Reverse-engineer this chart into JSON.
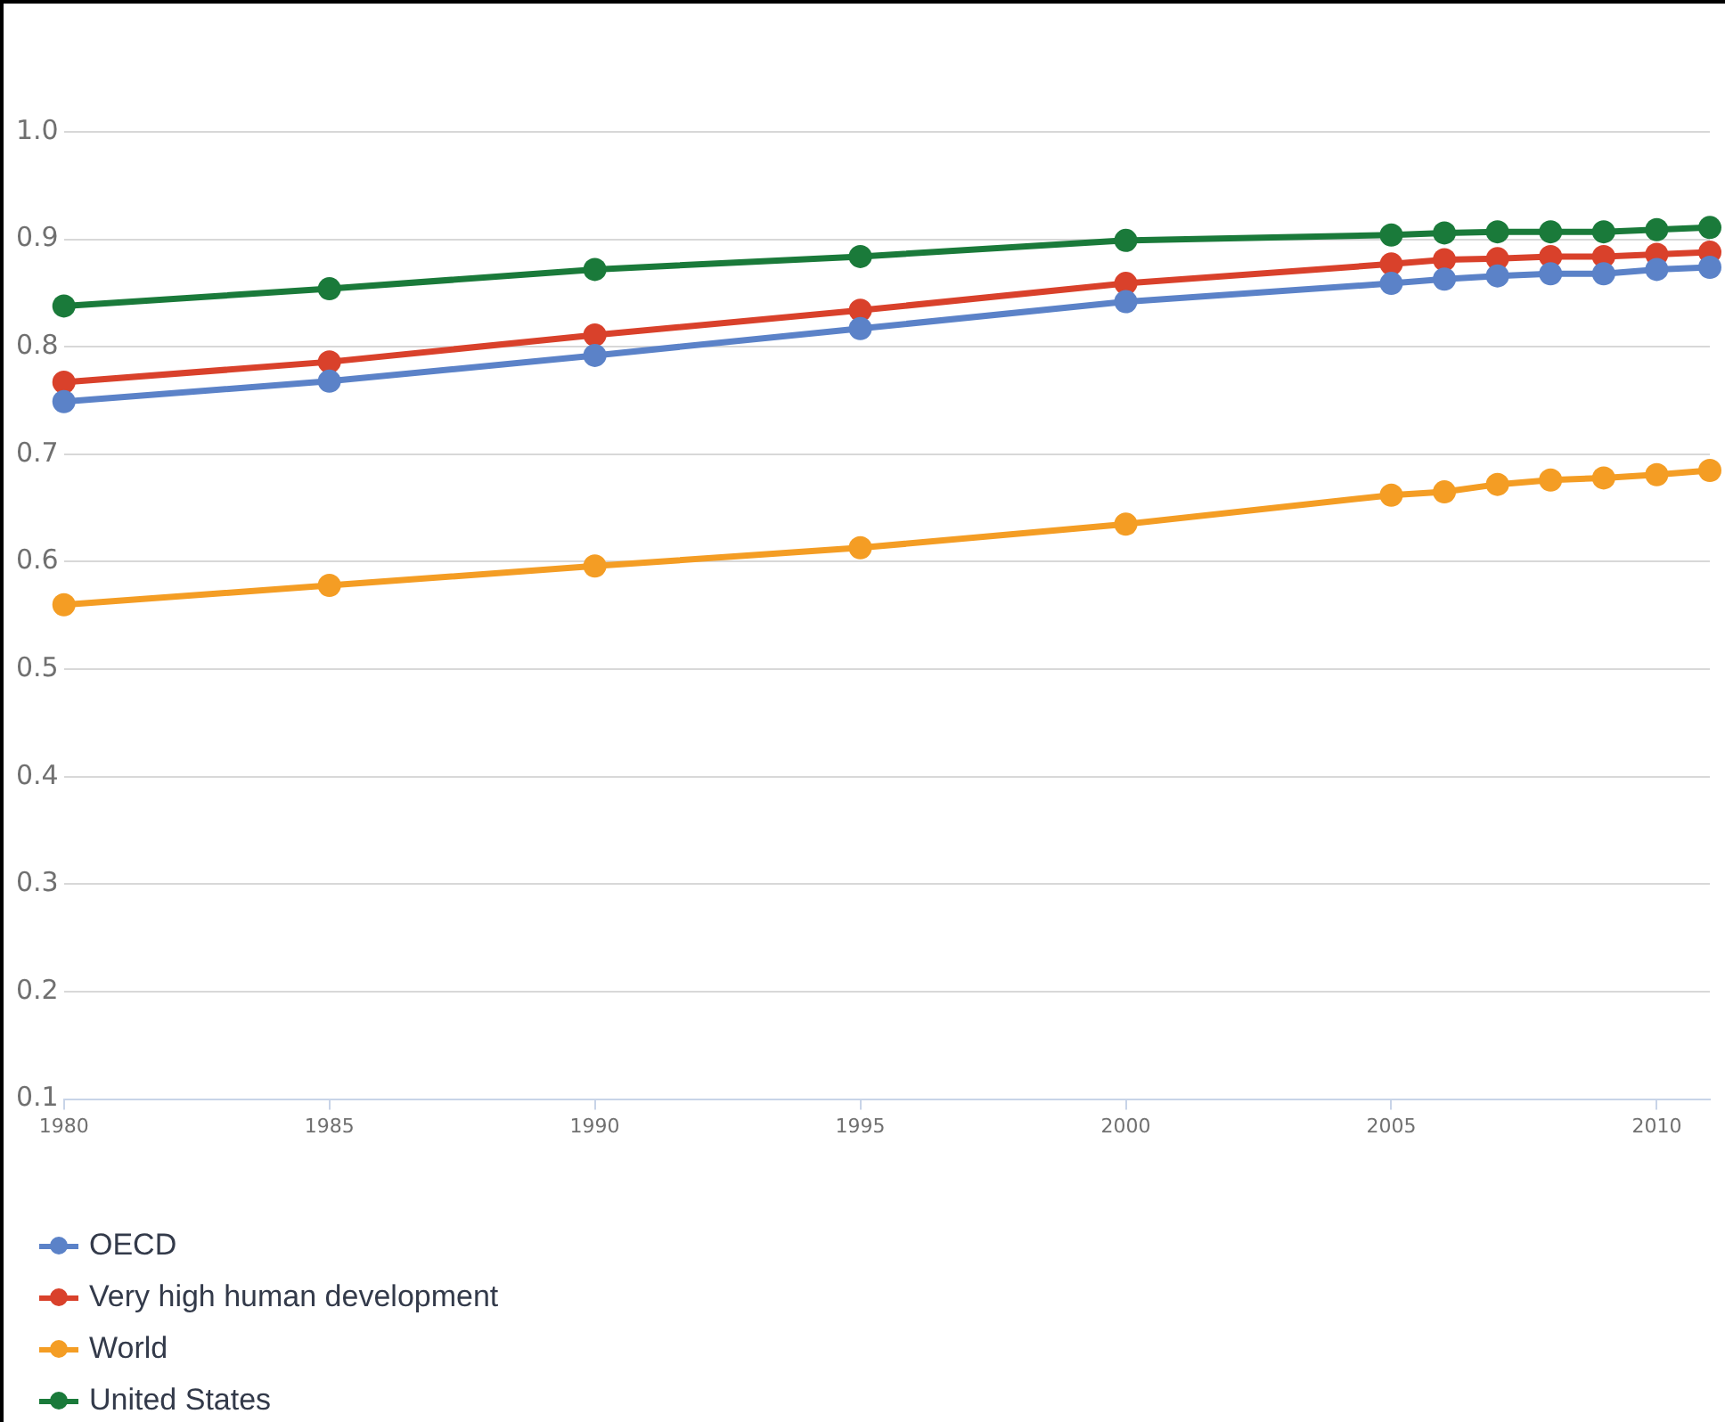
{
  "chart_data": {
    "type": "line",
    "x": [
      1980,
      1985,
      1990,
      1995,
      2000,
      2005,
      2006,
      2007,
      2008,
      2009,
      2010,
      2011
    ],
    "xlim": [
      1980,
      2011
    ],
    "xticks": [
      1980,
      1985,
      1990,
      1995,
      2000,
      2005,
      2010
    ],
    "ylim": [
      0.1,
      1.0
    ],
    "yticks": [
      {
        "value": 0.1,
        "label": "0.1"
      },
      {
        "value": 0.2,
        "label": "0.2"
      },
      {
        "value": 0.3,
        "label": "0.3"
      },
      {
        "value": 0.4,
        "label": "0.4"
      },
      {
        "value": 0.5,
        "label": "0.5"
      },
      {
        "value": 0.6,
        "label": "0.6"
      },
      {
        "value": 0.7,
        "label": "0.7"
      },
      {
        "value": 0.8,
        "label": "0.8"
      },
      {
        "value": 0.9,
        "label": "0.9"
      },
      {
        "value": 1.0,
        "label": "1.0"
      }
    ],
    "grid": "y",
    "legend": "bottom left",
    "marker": "circle",
    "line_style": "solid",
    "series": [
      {
        "name": "OECD",
        "color": "#5b82c8",
        "values": [
          0.749,
          0.768,
          0.792,
          0.817,
          0.842,
          0.859,
          0.863,
          0.866,
          0.868,
          0.868,
          0.872,
          0.874
        ]
      },
      {
        "name": "Very high human development",
        "color": "#d9412b",
        "values": [
          0.767,
          0.786,
          0.811,
          0.834,
          0.859,
          0.877,
          0.881,
          0.882,
          0.884,
          0.884,
          0.886,
          0.888
        ]
      },
      {
        "name": "World",
        "color": "#f49d24",
        "values": [
          0.56,
          0.578,
          0.596,
          0.613,
          0.635,
          0.662,
          0.665,
          0.672,
          0.676,
          0.678,
          0.681,
          0.685
        ]
      },
      {
        "name": "United States",
        "color": "#1a7a3a",
        "values": [
          0.838,
          0.854,
          0.872,
          0.884,
          0.899,
          0.904,
          0.906,
          0.907,
          0.907,
          0.907,
          0.909,
          0.911
        ]
      }
    ]
  }
}
